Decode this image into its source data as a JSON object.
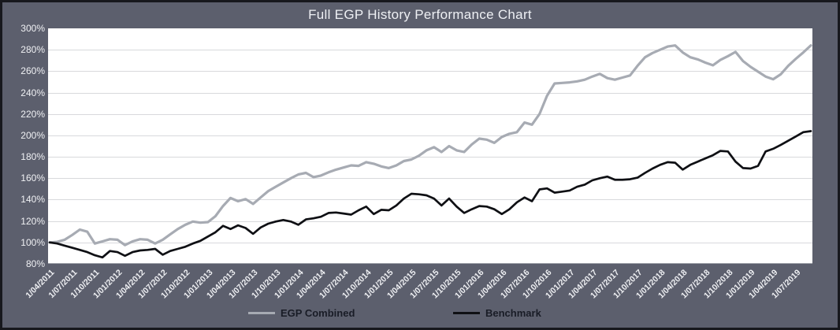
{
  "title": "Full EGP History Performance Chart",
  "colors": {
    "background": "#5c5f6d",
    "border": "#17181d",
    "plot_background": "#ffffff",
    "gridline": "#d8d9dc",
    "axis_text": "#f0f1f4",
    "egp_line": "#a7abb3",
    "benchmark_line": "#0f1014",
    "legend_text": "#191c26"
  },
  "legend": {
    "items": [
      {
        "label": "EGP Combined",
        "color": "#a7abb3"
      },
      {
        "label": "Benchmark",
        "color": "#0f1014"
      }
    ]
  },
  "y_axis": {
    "labels": [
      "300%",
      "280%",
      "260%",
      "240%",
      "220%",
      "200%",
      "180%",
      "160%",
      "140%",
      "120%",
      "100%",
      "80%"
    ],
    "min": 80,
    "max": 300,
    "step": 20
  },
  "x_axis": {
    "tick_labels": [
      "1/04/2011",
      "1/07/2011",
      "1/10/2011",
      "1/01/2012",
      "1/04/2012",
      "1/07/2012",
      "1/10/2012",
      "1/01/2013",
      "1/04/2013",
      "1/07/2013",
      "1/10/2013",
      "1/01/2014",
      "1/04/2014",
      "1/07/2014",
      "1/10/2014",
      "1/01/2015",
      "1/04/2015",
      "1/07/2015",
      "1/10/2015",
      "1/01/2016",
      "1/04/2016",
      "1/07/2016",
      "1/10/2016",
      "1/01/2017",
      "1/04/2017",
      "1/07/2017",
      "1/10/2017",
      "1/01/2018",
      "1/04/2018",
      "1/07/2018",
      "1/10/2018",
      "1/01/2019",
      "1/04/2019",
      "1/07/2019"
    ]
  },
  "chart_data": {
    "type": "line",
    "title": "Full EGP History Performance Chart",
    "ylabel": "",
    "xlabel": "",
    "ylim": [
      80,
      300
    ],
    "y_tick_format": "percent",
    "grid": "horizontal",
    "legend_position": "bottom",
    "x": [
      "2011-04",
      "2011-05",
      "2011-06",
      "2011-07",
      "2011-08",
      "2011-09",
      "2011-10",
      "2011-11",
      "2011-12",
      "2012-01",
      "2012-02",
      "2012-03",
      "2012-04",
      "2012-05",
      "2012-06",
      "2012-07",
      "2012-08",
      "2012-09",
      "2012-10",
      "2012-11",
      "2012-12",
      "2013-01",
      "2013-02",
      "2013-03",
      "2013-04",
      "2013-05",
      "2013-06",
      "2013-07",
      "2013-08",
      "2013-09",
      "2013-10",
      "2013-11",
      "2013-12",
      "2014-01",
      "2014-02",
      "2014-03",
      "2014-04",
      "2014-05",
      "2014-06",
      "2014-07",
      "2014-08",
      "2014-09",
      "2014-10",
      "2014-11",
      "2014-12",
      "2015-01",
      "2015-02",
      "2015-03",
      "2015-04",
      "2015-05",
      "2015-06",
      "2015-07",
      "2015-08",
      "2015-09",
      "2015-10",
      "2015-11",
      "2015-12",
      "2016-01",
      "2016-02",
      "2016-03",
      "2016-04",
      "2016-05",
      "2016-06",
      "2016-07",
      "2016-08",
      "2016-09",
      "2016-10",
      "2016-11",
      "2016-12",
      "2017-01",
      "2017-02",
      "2017-03",
      "2017-04",
      "2017-05",
      "2017-06",
      "2017-07",
      "2017-08",
      "2017-09",
      "2017-10",
      "2017-11",
      "2017-12",
      "2018-01",
      "2018-02",
      "2018-03",
      "2018-04",
      "2018-05",
      "2018-06",
      "2018-07",
      "2018-08",
      "2018-09",
      "2018-10",
      "2018-11",
      "2018-12",
      "2019-01",
      "2019-02",
      "2019-03",
      "2019-04",
      "2019-05",
      "2019-06",
      "2019-07",
      "2019-08",
      "2019-09"
    ],
    "series": [
      {
        "name": "EGP Combined",
        "color": "#a7abb3",
        "values": [
          100,
          100.5,
          102.5,
          107,
          112,
          110,
          99,
          101,
          103,
          102.5,
          97.5,
          101,
          103,
          102.5,
          99,
          102.5,
          107.5,
          112.5,
          116.5,
          119.5,
          118.5,
          119,
          124.5,
          134,
          141.5,
          138.5,
          140.5,
          136,
          142,
          148,
          152,
          156,
          160,
          163.5,
          165,
          161,
          162.5,
          165.5,
          168,
          170,
          172,
          171.5,
          175,
          173.5,
          171,
          169.5,
          172,
          176,
          177.5,
          181,
          186,
          189,
          184.5,
          190,
          186,
          184.5,
          191.5,
          197,
          196,
          193,
          198.5,
          201.5,
          203,
          212,
          210,
          220,
          237,
          248.5,
          249,
          249.5,
          250.5,
          252,
          255,
          257.5,
          253.5,
          252,
          254,
          256,
          265,
          273,
          277,
          280,
          283,
          284,
          277.5,
          273,
          271,
          268,
          265.5,
          270.5,
          274,
          278,
          269.5,
          264,
          259.5,
          255,
          252.5,
          257,
          265,
          271.5,
          277.5,
          284
        ]
      },
      {
        "name": "Benchmark",
        "color": "#0f1014",
        "values": [
          100,
          99,
          97,
          95,
          93,
          91,
          88,
          86,
          92,
          91,
          87.5,
          91,
          92.5,
          93,
          94,
          88.5,
          92,
          94,
          96,
          99,
          101.5,
          105.5,
          109.5,
          115.5,
          112.5,
          116,
          113.5,
          108,
          114,
          117.5,
          119.5,
          121,
          119.5,
          116.5,
          121.5,
          122.5,
          124,
          127.5,
          128,
          127,
          126,
          130,
          133.5,
          126.5,
          130.5,
          130,
          134.5,
          141,
          145.5,
          145,
          144,
          141,
          134.5,
          141,
          133.5,
          127.5,
          131,
          134,
          133.5,
          131,
          126.5,
          131,
          137.5,
          142,
          138.5,
          149.5,
          150.5,
          146.5,
          147.5,
          148.5,
          152,
          154,
          158,
          160,
          161.5,
          158.5,
          158.5,
          159,
          160.5,
          165,
          169,
          172.5,
          175,
          174.5,
          168,
          172.5,
          175.5,
          178.5,
          181.5,
          185.5,
          185,
          175.5,
          169.5,
          169,
          171.5,
          185,
          187.5,
          191,
          195,
          199,
          203,
          204
        ]
      }
    ]
  }
}
